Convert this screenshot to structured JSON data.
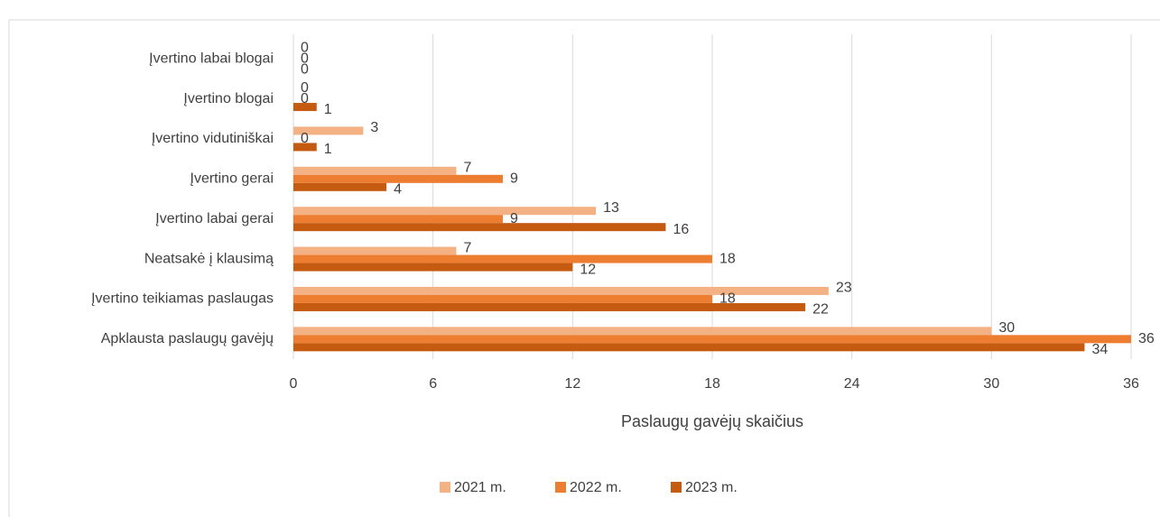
{
  "chart_data": {
    "type": "barh",
    "categories": [
      "Įvertino labai blogai",
      "Įvertino blogai",
      "Įvertino vidutiniškai",
      "Įvertino gerai",
      "Įvertino labai gerai",
      "Neatsakė į klausimą",
      "Įvertino teikiamas paslaugas",
      "Apklausta paslaugų gavėjų"
    ],
    "series": [
      {
        "name": "2021 m.",
        "color": "#f4b183",
        "values": [
          0,
          0,
          3,
          7,
          13,
          7,
          23,
          30
        ]
      },
      {
        "name": "2022 m.",
        "color": "#ed7d31",
        "values": [
          0,
          0,
          0,
          9,
          9,
          18,
          18,
          36
        ]
      },
      {
        "name": "2023 m.",
        "color": "#c55a11",
        "values": [
          0,
          1,
          1,
          4,
          16,
          12,
          22,
          34
        ]
      }
    ],
    "xlabel": "Paslaugų gavėjų skaičius",
    "xlim": [
      0,
      36
    ],
    "xticks": [
      0,
      6,
      12,
      18,
      24,
      30,
      36
    ],
    "grid": true,
    "legend": "bottom"
  }
}
